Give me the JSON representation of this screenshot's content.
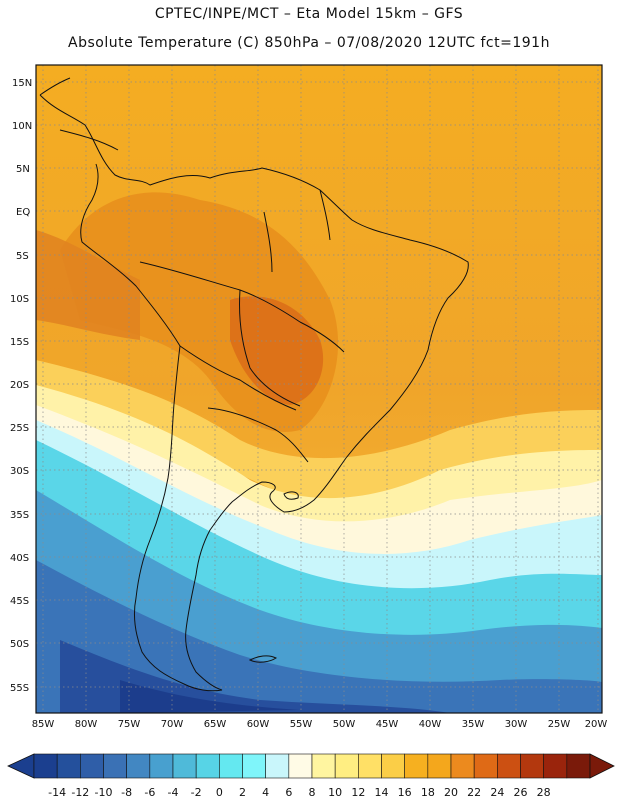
{
  "header": {
    "line1": "CPTEC/INPE/MCT –  Eta Model 15km – GFS",
    "line2": "Absolute Temperature (C) 850hPa – 07/08/2020 12UTC fct=191h"
  },
  "axes": {
    "lat_labels": [
      "15N",
      "10N",
      "5N",
      "EQ",
      "5S",
      "10S",
      "15S",
      "20S",
      "25S",
      "30S",
      "35S",
      "40S",
      "45S",
      "50S",
      "55S"
    ],
    "lon_labels": [
      "85W",
      "80W",
      "75W",
      "70W",
      "65W",
      "60W",
      "55W",
      "50W",
      "45W",
      "40W",
      "35W",
      "30W",
      "25W",
      "20W"
    ]
  },
  "colorbar": {
    "labels": [
      "-14",
      "-12",
      "-10",
      "-8",
      "-6",
      "-4",
      "-2",
      "0",
      "2",
      "4",
      "6",
      "8",
      "10",
      "12",
      "14",
      "16",
      "18",
      "20",
      "22",
      "24",
      "26",
      "28"
    ],
    "colors": [
      "#1b3f8f",
      "#24509c",
      "#2f5ea8",
      "#3a71b5",
      "#4287c2",
      "#48a0cf",
      "#4fbad9",
      "#57d4e6",
      "#64e8f0",
      "#7ff5fa",
      "#c9f6fb",
      "#fffbe6",
      "#fff5a0",
      "#ffee82",
      "#ffe066",
      "#fbce47",
      "#f6b020",
      "#f4a71c",
      "#ec8a1e",
      "#df6a16",
      "#cc5012",
      "#b3380e",
      "#9a240c",
      "#7a1a0a"
    ]
  },
  "map": {
    "ocean_color": "#f2b02a",
    "land_color": "#ea9a24"
  }
}
